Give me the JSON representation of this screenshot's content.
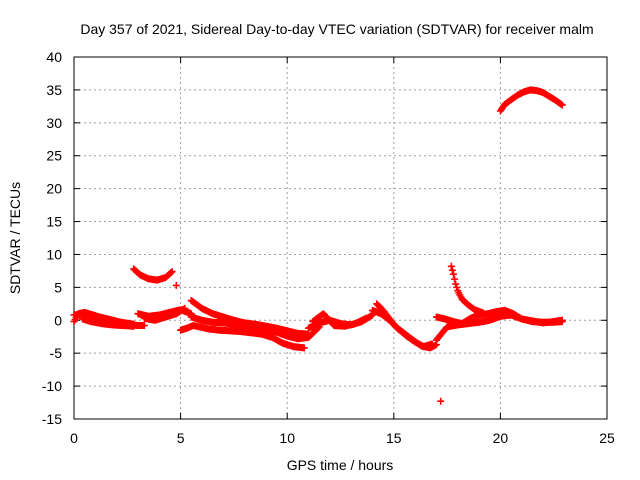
{
  "chart_data": {
    "type": "scatter",
    "title": "Day 357 of 2021, Sidereal Day-to-day VTEC variation (SDTVAR) for receiver malm",
    "xlabel": "GPS time / hours",
    "ylabel": "SDTVAR / TECUs",
    "xlim": [
      0,
      25
    ],
    "ylim": [
      -15,
      40
    ],
    "xticks": [
      0,
      5,
      10,
      15,
      20,
      25
    ],
    "yticks": [
      -15,
      -10,
      -5,
      0,
      5,
      10,
      15,
      20,
      25,
      30,
      35,
      40
    ],
    "grid": true,
    "marker": "plus",
    "series": [
      {
        "name": "SDTVAR",
        "color": "#ff0000",
        "tracks": [
          {
            "x": [
              0.0,
              0.3,
              0.6,
              1.0,
              1.5,
              2.0,
              2.5,
              3.0,
              3.3
            ],
            "y": [
              0.8,
              0.9,
              0.6,
              0.2,
              -0.1,
              -0.4,
              -0.6,
              -0.8,
              -0.8
            ]
          },
          {
            "x": [
              0.0,
              0.2,
              0.5,
              0.8,
              1.2,
              1.7,
              2.2,
              2.8
            ],
            "y": [
              -0.2,
              1.0,
              1.2,
              0.9,
              0.5,
              0.1,
              -0.3,
              -0.6
            ]
          },
          {
            "x": [
              0.4,
              0.8,
              1.3,
              1.8,
              2.3,
              2.8
            ],
            "y": [
              0.2,
              -0.2,
              -0.5,
              -0.7,
              -0.8,
              -0.9
            ]
          },
          {
            "x": [
              2.8,
              3.1,
              3.5,
              3.9,
              4.3,
              4.6
            ],
            "y": [
              7.8,
              6.9,
              6.3,
              6.1,
              6.5,
              7.4
            ]
          },
          {
            "x": [
              4.8
            ],
            "y": [
              5.3
            ]
          },
          {
            "x": [
              3.0,
              3.5,
              4.0,
              4.5,
              5.0,
              5.5
            ],
            "y": [
              1.0,
              0.6,
              0.8,
              1.2,
              1.6,
              1.0
            ]
          },
          {
            "x": [
              3.3,
              3.8,
              4.3,
              4.8,
              5.2
            ],
            "y": [
              0.3,
              0.0,
              0.5,
              1.0,
              1.8
            ]
          },
          {
            "x": [
              5.0,
              5.3,
              5.6,
              5.9,
              6.3,
              6.8,
              7.3,
              7.8,
              8.3,
              8.8,
              9.3,
              9.8,
              10.3,
              10.8
            ],
            "y": [
              -1.5,
              -1.2,
              -0.8,
              -1.0,
              -1.3,
              -1.5,
              -1.6,
              -1.7,
              -1.9,
              -2.1,
              -2.6,
              -3.5,
              -4.0,
              -4.2
            ]
          },
          {
            "x": [
              5.5,
              6.0,
              6.5,
              7.0,
              7.5,
              8.0,
              8.5,
              9.0,
              9.5,
              10.0,
              10.5,
              11.0
            ],
            "y": [
              3.0,
              1.8,
              1.0,
              0.5,
              0.0,
              -0.4,
              -0.6,
              -0.9,
              -1.2,
              -1.6,
              -2.0,
              -2.1
            ]
          },
          {
            "x": [
              5.5,
              6.0,
              6.5,
              7.0,
              7.5,
              8.0,
              8.5,
              9.0,
              9.5,
              10.0,
              10.5,
              11.0,
              11.5
            ],
            "y": [
              0.5,
              0.0,
              -0.3,
              -0.4,
              -0.6,
              -0.9,
              -1.1,
              -1.4,
              -1.8,
              -2.4,
              -2.8,
              -2.6,
              -1.0
            ]
          },
          {
            "x": [
              11.0,
              11.5,
              12.0,
              12.5,
              13.0,
              13.5,
              14.0
            ],
            "y": [
              -1.2,
              -0.4,
              0.0,
              -0.5,
              -0.7,
              -0.2,
              0.8
            ]
          },
          {
            "x": [
              11.2,
              11.7,
              12.2,
              12.7,
              13.2,
              13.7
            ],
            "y": [
              -0.2,
              1.0,
              -0.8,
              -0.9,
              -0.5,
              0.3
            ]
          },
          {
            "x": [
              14.2,
              14.5,
              14.8,
              15.1,
              15.5,
              15.9,
              16.3,
              16.7,
              17.0
            ],
            "y": [
              2.5,
              1.5,
              0.2,
              -1.0,
              -2.0,
              -3.0,
              -3.9,
              -4.2,
              -3.7
            ]
          },
          {
            "x": [
              14.0,
              14.4,
              14.8,
              15.2,
              15.6,
              16.0,
              16.4,
              16.8
            ],
            "y": [
              1.5,
              1.0,
              0.0,
              -1.3,
              -2.4,
              -3.3,
              -4.0,
              -3.6
            ]
          },
          {
            "x": [
              17.2
            ],
            "y": [
              -12.3
            ]
          },
          {
            "x": [
              17.0,
              17.5,
              18.0,
              18.5,
              19.0,
              19.5,
              20.0,
              20.5,
              21.0,
              21.5,
              22.0,
              22.5,
              22.9
            ],
            "y": [
              -3.0,
              -1.0,
              -0.7,
              -0.5,
              -0.3,
              0.0,
              0.6,
              0.8,
              0.2,
              -0.2,
              -0.3,
              -0.3,
              -0.2
            ]
          },
          {
            "x": [
              17.0,
              17.4,
              17.8,
              18.2,
              18.6,
              19.0,
              19.4,
              19.8,
              20.2,
              20.6,
              21.0,
              21.5,
              22.0,
              22.5,
              22.9
            ],
            "y": [
              0.5,
              0.2,
              -0.2,
              -0.5,
              0.3,
              0.8,
              1.0,
              1.3,
              1.5,
              1.0,
              0.2,
              -0.1,
              -0.4,
              -0.2,
              0.0
            ]
          },
          {
            "x": [
              17.7,
              17.8,
              17.9,
              18.0,
              18.2,
              18.5,
              18.8,
              19.2
            ],
            "y": [
              8.2,
              7.0,
              5.5,
              4.5,
              3.2,
              2.3,
              1.6,
              1.1
            ]
          },
          {
            "x": [
              20.0,
              20.2,
              20.5,
              20.8,
              21.1,
              21.4,
              21.7,
              22.0,
              22.3,
              22.6,
              22.9
            ],
            "y": [
              31.8,
              32.8,
              33.5,
              34.2,
              34.7,
              35.0,
              34.9,
              34.6,
              34.0,
              33.4,
              32.7
            ]
          }
        ]
      }
    ]
  }
}
